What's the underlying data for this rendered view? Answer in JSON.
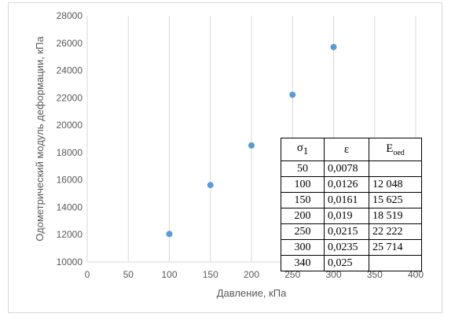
{
  "chart_data": {
    "type": "scatter",
    "title": "",
    "xlabel": "Давление, кПа",
    "ylabel": "Одометрический модуль деформации, кПа",
    "xlim": [
      0,
      400
    ],
    "ylim": [
      10000,
      28000
    ],
    "xticks": [
      0,
      50,
      100,
      150,
      200,
      250,
      300,
      350,
      400
    ],
    "yticks": [
      10000,
      12000,
      14000,
      16000,
      18000,
      20000,
      22000,
      24000,
      26000,
      28000
    ],
    "grid": "vertical",
    "marker_color": "#5b9bd5",
    "series": [
      {
        "x": [
          100,
          150,
          200,
          250,
          300
        ],
        "y": [
          12048,
          15625,
          18519,
          22222,
          25714
        ]
      }
    ]
  },
  "table": {
    "headers": {
      "sigma": "σ",
      "sigma_sub": "1",
      "eps": "ε",
      "e": "E",
      "e_sub": "oed"
    },
    "rows": [
      [
        "50",
        "0,0078",
        ""
      ],
      [
        "100",
        "0,0126",
        "12 048"
      ],
      [
        "150",
        "0,0161",
        "15 625"
      ],
      [
        "200",
        "0,019",
        "18 519"
      ],
      [
        "250",
        "0,0215",
        "22 222"
      ],
      [
        "300",
        "0,0235",
        "25 714"
      ],
      [
        "340",
        "0,025",
        ""
      ]
    ]
  }
}
